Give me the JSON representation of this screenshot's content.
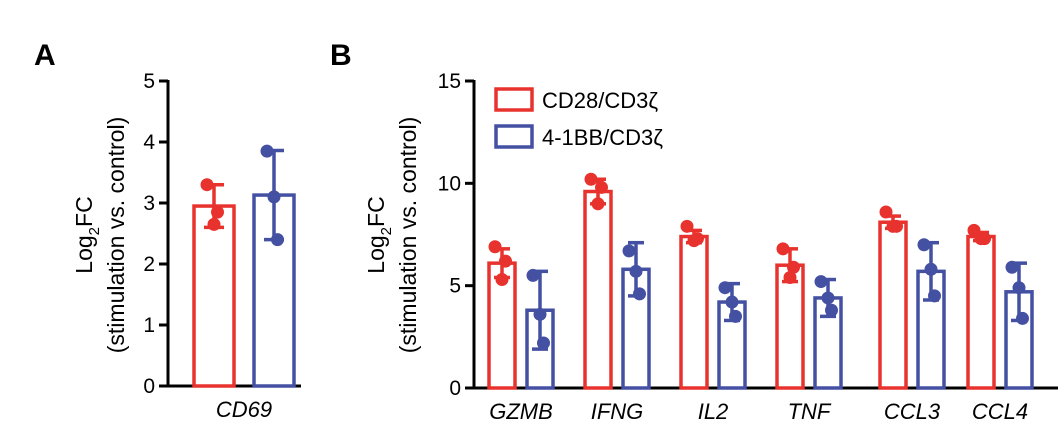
{
  "panels": {
    "a": {
      "letter": "A"
    },
    "b": {
      "letter": "B"
    }
  },
  "chart_data": [
    {
      "type": "bar",
      "title": "",
      "ylabel_line1_main": "Log",
      "ylabel_line1_sub": "2",
      "ylabel_line1_tail": "FC",
      "ylabel_line2": "(stimulation vs. control)",
      "ylim": [
        0,
        5
      ],
      "yticks": [
        0,
        1,
        2,
        3,
        4,
        5
      ],
      "categories": [
        "CD69"
      ],
      "series": [
        {
          "name": "CD28/CD3ζ",
          "color": "#e8322e",
          "values": [
            2.95
          ],
          "sd": [
            0.35
          ],
          "points": [
            [
              3.3,
              2.65,
              2.85
            ]
          ]
        },
        {
          "name": "4-1BB/CD3ζ",
          "color": "#4451a3",
          "values": [
            3.13
          ],
          "sd": [
            0.73
          ],
          "points": [
            [
              3.85,
              3.1,
              2.4
            ]
          ]
        }
      ]
    },
    {
      "type": "bar",
      "title": "",
      "ylabel_line1_main": "Log",
      "ylabel_line1_sub": "2",
      "ylabel_line1_tail": "FC",
      "ylabel_line2": "(stimulation vs. control)",
      "ylim": [
        0,
        15
      ],
      "yticks": [
        0,
        5,
        10,
        15
      ],
      "legend_position": "top-left",
      "categories": [
        "GZMB",
        "IFNG",
        "IL2",
        "TNF",
        "CCL3",
        "CCL4"
      ],
      "series": [
        {
          "name": "CD28/CD3ζ",
          "color": "#e8322e",
          "values": [
            6.1,
            9.6,
            7.4,
            6.0,
            8.1,
            7.4
          ],
          "sd": [
            0.7,
            0.6,
            0.3,
            0.8,
            0.3,
            0.2
          ],
          "points": [
            [
              6.9,
              5.3,
              6.2
            ],
            [
              10.2,
              9.0,
              9.8
            ],
            [
              7.9,
              7.2,
              7.3
            ],
            [
              6.8,
              5.4,
              5.9
            ],
            [
              8.6,
              7.9,
              7.9
            ],
            [
              7.7,
              7.3,
              7.3
            ]
          ]
        },
        {
          "name": "4-1BB/CD3ζ",
          "color": "#4451a3",
          "values": [
            3.8,
            5.8,
            4.2,
            4.4,
            5.7,
            4.7
          ],
          "sd": [
            1.9,
            1.3,
            0.9,
            0.9,
            1.4,
            1.4
          ],
          "points": [
            [
              5.5,
              3.6,
              2.2
            ],
            [
              6.7,
              5.7,
              4.6
            ],
            [
              4.9,
              4.2,
              3.5
            ],
            [
              5.2,
              4.4,
              3.8
            ],
            [
              7.0,
              5.8,
              4.5
            ],
            [
              5.9,
              4.9,
              3.4
            ]
          ]
        }
      ]
    }
  ]
}
